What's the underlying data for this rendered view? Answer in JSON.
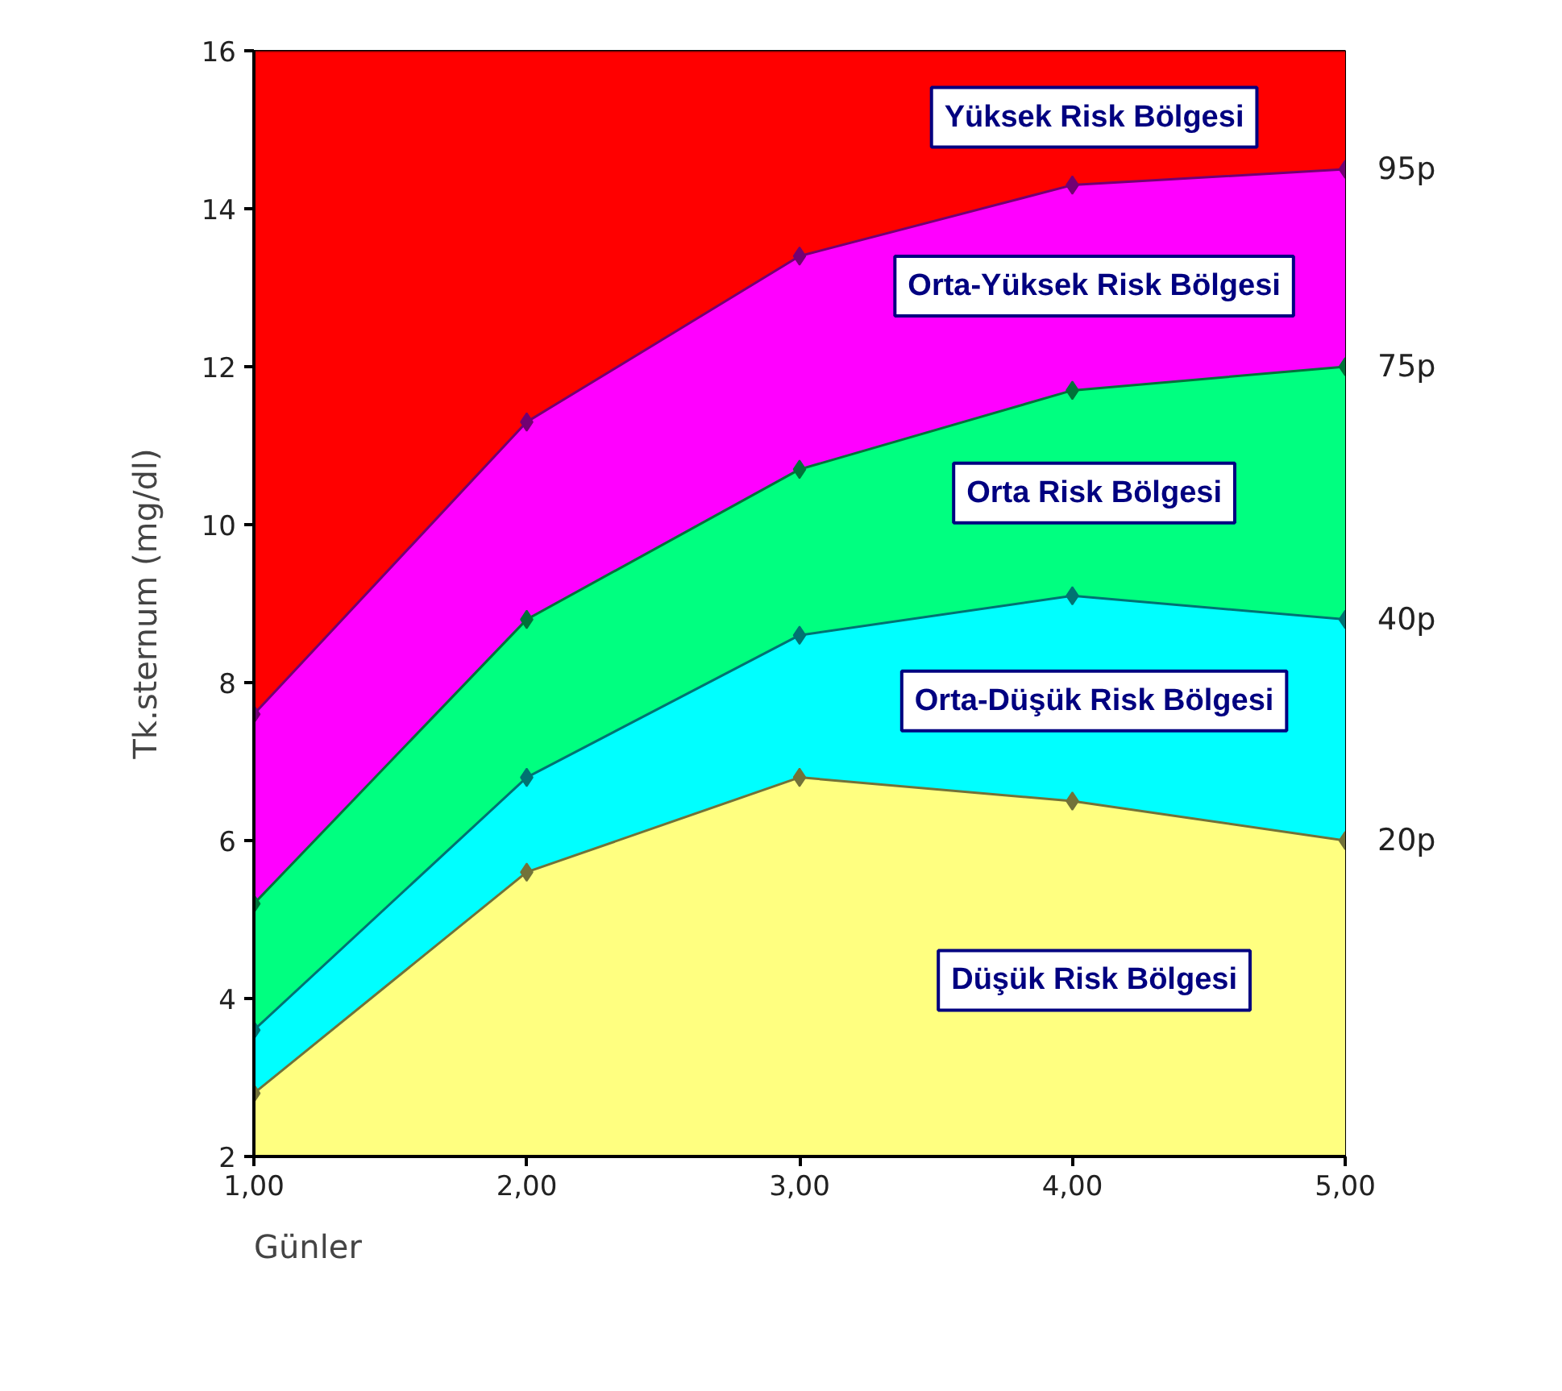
{
  "chart_data": {
    "type": "area",
    "xlabel": "Günler",
    "ylabel": "Tk.sternum (mg/dl)",
    "x": [
      1,
      2,
      3,
      4,
      5
    ],
    "series": [
      {
        "name": "20p",
        "color": "#ffff80",
        "values": [
          2.8,
          5.6,
          6.8,
          6.5,
          6.0
        ]
      },
      {
        "name": "40p",
        "color": "#00ffff",
        "values": [
          3.6,
          6.8,
          8.6,
          9.1,
          8.8
        ]
      },
      {
        "name": "75p",
        "color": "#00ff80",
        "values": [
          5.2,
          8.8,
          10.7,
          11.7,
          12.0
        ]
      },
      {
        "name": "95p",
        "color": "#ff00ff",
        "values": [
          7.6,
          11.3,
          13.4,
          14.3,
          14.5
        ]
      },
      {
        "color": "#ff0000",
        "values": [
          16,
          16,
          16,
          16,
          16
        ],
        "marker": "none"
      }
    ],
    "stacked": false,
    "marker": "diamond",
    "xlim": [
      1,
      5
    ],
    "ylim": [
      2,
      16
    ],
    "xticks": [
      {
        "value": 1,
        "label": "1,00"
      },
      {
        "value": 2,
        "label": "2,00"
      },
      {
        "value": 3,
        "label": "3,00"
      },
      {
        "value": 4,
        "label": "4,00"
      },
      {
        "value": 5,
        "label": "5,00"
      }
    ],
    "yticks": [
      2,
      4,
      6,
      8,
      10,
      12,
      14,
      16
    ],
    "annotations": [
      "Yüksek Risk Bölgesi",
      "Orta-Yüksek Risk Bölgesi",
      "Orta Risk Bölgesi",
      "Orta-Düşük Risk Bölgesi",
      "Düşük Risk Bölgesi"
    ]
  }
}
